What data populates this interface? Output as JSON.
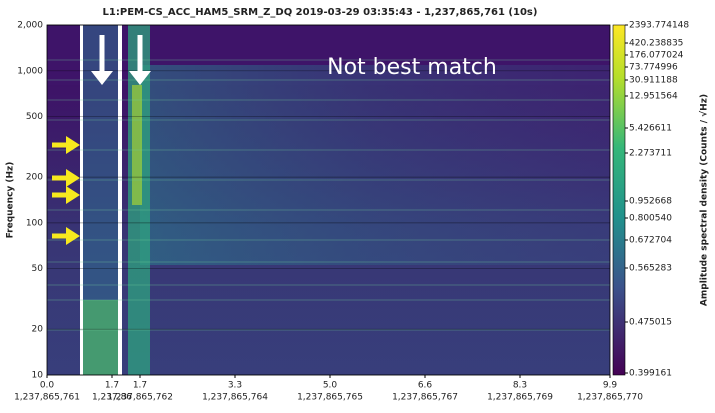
{
  "chart_data": {
    "type": "spectrogram",
    "title": "L1:PEM-CS_ACC_HAM5_SRM_Z_DQ 2019-03-29 03:35:43 - 1,237,865,761 (10s)",
    "y_label": "Frequency (Hz)",
    "log_y": true,
    "ylim": [
      10,
      2000
    ],
    "yticks": [
      10,
      20,
      50,
      100,
      200,
      500,
      {
        "value": 1000,
        "label": "1,000"
      },
      {
        "value": 2000,
        "label": "2,000"
      }
    ],
    "x_tick_labels": [
      {
        "top": "0.0",
        "bottom": "1,237,865,761"
      },
      {
        "top": "1.7",
        "bottom": "1,237,86"
      },
      {
        "top": "1.7",
        "bottom": "1,237,865,762"
      },
      {
        "top": "3.3",
        "bottom": "1,237,865,764"
      },
      {
        "top": "5.0",
        "bottom": "1,237,865,765"
      },
      {
        "top": "6.6",
        "bottom": "1,237,865,767"
      },
      {
        "top": "8.3",
        "bottom": "1,237,865,769"
      },
      {
        "top": "9.9",
        "bottom": "1,237,865,770"
      }
    ],
    "colorbar_label": "Amplitude spectral density (Counts / √Hz)",
    "colorbar_ticks": [
      2393.774148,
      420.238835,
      176.077024,
      73.774996,
      30.911188,
      12.951564,
      5.426611,
      2.273711,
      0.952668,
      {
        "value": 0.80054,
        "label": "0.800540"
      },
      0.672704,
      0.565283,
      0.475015,
      0.399161
    ],
    "annotation": "Not best match"
  }
}
